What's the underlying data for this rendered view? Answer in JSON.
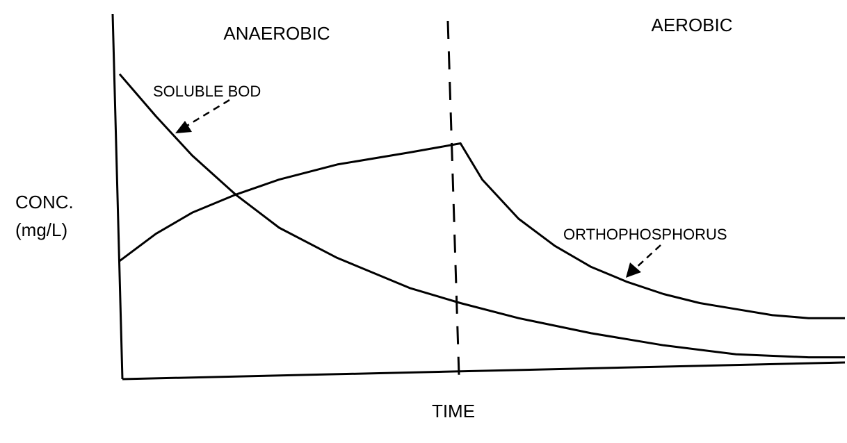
{
  "chart_data": {
    "type": "line",
    "title": "",
    "xlabel": "TIME",
    "ylabel_line1": "CONC.",
    "ylabel_line2": "(mg/L)",
    "regions": [
      {
        "name": "ANAEROBIC",
        "from": 0,
        "to": 0.47
      },
      {
        "name": "AEROBIC",
        "from": 0.47,
        "to": 1.0
      }
    ],
    "phase_boundary_x": 0.47,
    "xlim": [
      0,
      1
    ],
    "ylim": [
      0,
      1
    ],
    "grid": false,
    "ticks": false,
    "series": [
      {
        "name": "SOLUBLE BOD",
        "x": [
          0.0,
          0.05,
          0.1,
          0.16,
          0.22,
          0.3,
          0.4,
          0.47,
          0.55,
          0.65,
          0.75,
          0.85,
          0.95,
          1.0
        ],
        "y": [
          0.98,
          0.84,
          0.71,
          0.58,
          0.47,
          0.37,
          0.27,
          0.22,
          0.17,
          0.12,
          0.08,
          0.05,
          0.04,
          0.04
        ]
      },
      {
        "name": "ORTHOPHOSPHORUS",
        "x": [
          0.0,
          0.05,
          0.1,
          0.16,
          0.22,
          0.3,
          0.4,
          0.47,
          0.5,
          0.55,
          0.6,
          0.65,
          0.7,
          0.75,
          0.8,
          0.85,
          0.9,
          0.95,
          1.0
        ],
        "y": [
          0.36,
          0.45,
          0.52,
          0.58,
          0.63,
          0.68,
          0.72,
          0.75,
          0.63,
          0.5,
          0.41,
          0.34,
          0.29,
          0.25,
          0.22,
          0.2,
          0.18,
          0.17,
          0.17
        ]
      }
    ]
  }
}
